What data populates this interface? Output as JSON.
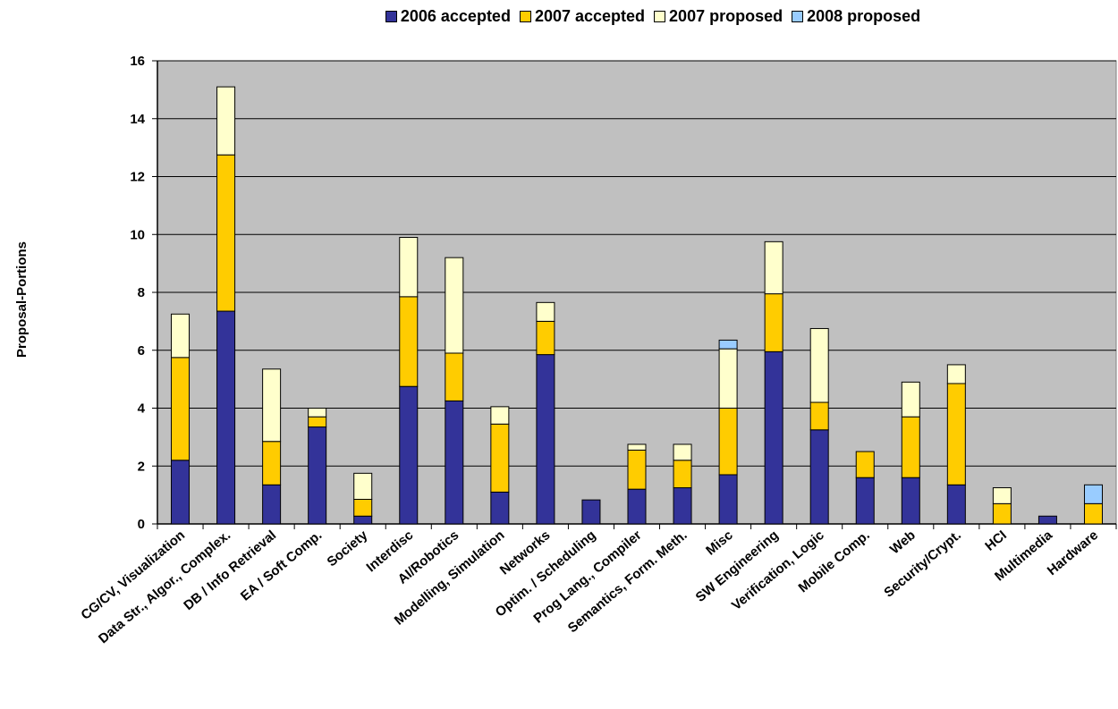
{
  "chart_data": {
    "type": "bar",
    "stacked": true,
    "title": "",
    "xlabel": "",
    "ylabel": "Proposal-Portions",
    "ylim": [
      0,
      16
    ],
    "yticks": [
      0,
      2,
      4,
      6,
      8,
      10,
      12,
      14,
      16
    ],
    "grid": true,
    "legend_position": "top",
    "categories": [
      "CG/CV, Visualization",
      "Data Str., Algor., Complex.",
      "DB / Info Retrieval",
      "EA / Soft Comp.",
      "Society",
      "Interdisc",
      "AI/Robotics",
      "Modelling, Simulation",
      "Networks",
      "Optim. / Scheduling",
      "Prog Lang., Compiler",
      "Semantics, Form. Meth.",
      "Misc",
      "SW Engineering",
      "Verification, Logic",
      "Mobile Comp.",
      "Web",
      "Security/Crypt.",
      "HCI",
      "Multimedia",
      "Hardware"
    ],
    "series": [
      {
        "name": "2006 accepted",
        "color": "#333399",
        "values": [
          2.2,
          7.35,
          1.35,
          3.35,
          0.27,
          4.75,
          4.25,
          1.1,
          5.85,
          0.83,
          1.2,
          1.25,
          1.7,
          5.95,
          3.25,
          1.6,
          1.6,
          1.35,
          0,
          0.27,
          0
        ]
      },
      {
        "name": "2007 accepted",
        "color": "#ffcc00",
        "values": [
          3.55,
          5.4,
          1.5,
          0.35,
          0.58,
          3.1,
          1.65,
          2.35,
          1.15,
          0,
          1.35,
          0.95,
          2.3,
          2.0,
          0.95,
          0.9,
          2.1,
          3.5,
          0.7,
          0,
          0.7
        ]
      },
      {
        "name": "2007 proposed",
        "color": "#ffffcc",
        "values": [
          1.5,
          2.35,
          2.5,
          0.3,
          0.9,
          2.05,
          3.3,
          0.6,
          0.65,
          0,
          0.2,
          0.55,
          2.05,
          1.8,
          2.55,
          0,
          1.2,
          0.65,
          0.55,
          0,
          0
        ]
      },
      {
        "name": "2008 proposed",
        "color": "#99ccff",
        "values": [
          0,
          0,
          0,
          0,
          0,
          0,
          0,
          0,
          0,
          0,
          0,
          0,
          0.3,
          0,
          0,
          0,
          0,
          0,
          0,
          0,
          0.65
        ]
      }
    ]
  }
}
